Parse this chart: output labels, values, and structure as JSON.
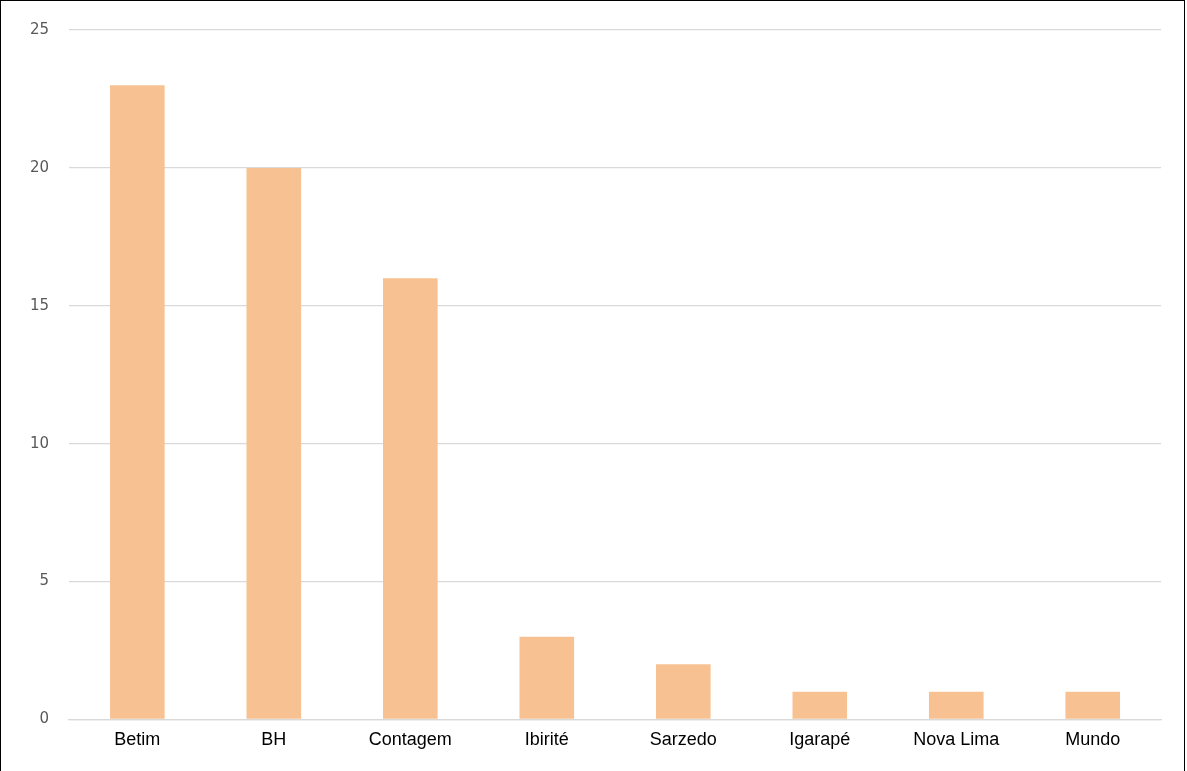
{
  "chart_data": {
    "type": "bar",
    "categories": [
      "Betim",
      "BH",
      "Contagem",
      "Ibirité",
      "Sarzedo",
      "Igarapé",
      "Nova Lima",
      "Mundo"
    ],
    "values": [
      23,
      20,
      16,
      3,
      2,
      1,
      1,
      1
    ],
    "color": "#f8c192",
    "ylim": [
      0,
      25
    ],
    "yticks": [
      0,
      5,
      10,
      15,
      20,
      25
    ],
    "grid": "y",
    "legend": false
  }
}
